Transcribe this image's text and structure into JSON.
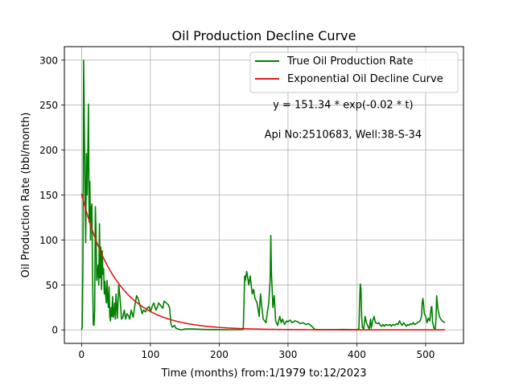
{
  "chart_data": {
    "type": "line",
    "title": "Oil Production Decline Curve",
    "xlabel": "Time (months) from:1/1979 to:12/2023",
    "ylabel": "Oil Production Rate (bbl/month)",
    "xlim": [
      -25,
      555
    ],
    "ylim": [
      -15,
      315
    ],
    "xticks": [
      0,
      100,
      200,
      300,
      400,
      500
    ],
    "yticks": [
      0,
      50,
      100,
      150,
      200,
      250,
      300
    ],
    "grid": true,
    "legend_position": "top-right",
    "annotations": [
      {
        "text": "y = 151.34 * exp(-0.02 * t)",
        "x": 380,
        "y": 250
      },
      {
        "text": "Api No:2510683, Well:38-S-34",
        "x": 380,
        "y": 217
      }
    ],
    "series": [
      {
        "name": "True Oil Production Rate",
        "color": "#008000",
        "points": [
          [
            0,
            0
          ],
          [
            1,
            3
          ],
          [
            2,
            80
          ],
          [
            3,
            300
          ],
          [
            4,
            230
          ],
          [
            5,
            150
          ],
          [
            6,
            97
          ],
          [
            7,
            196
          ],
          [
            8,
            150
          ],
          [
            9,
            190
          ],
          [
            10,
            251
          ],
          [
            11,
            120
          ],
          [
            12,
            165
          ],
          [
            13,
            100
          ],
          [
            14,
            135
          ],
          [
            15,
            140
          ],
          [
            16,
            60
          ],
          [
            17,
            6
          ],
          [
            18,
            5
          ],
          [
            19,
            20
          ],
          [
            20,
            137
          ],
          [
            21,
            110
          ],
          [
            22,
            55
          ],
          [
            23,
            62
          ],
          [
            24,
            72
          ],
          [
            25,
            50
          ],
          [
            26,
            118
          ],
          [
            27,
            58
          ],
          [
            28,
            92
          ],
          [
            29,
            45
          ],
          [
            30,
            88
          ],
          [
            31,
            62
          ],
          [
            32,
            68
          ],
          [
            33,
            40
          ],
          [
            34,
            54
          ],
          [
            35,
            38
          ],
          [
            36,
            30
          ],
          [
            37,
            55
          ],
          [
            38,
            33
          ],
          [
            39,
            25
          ],
          [
            40,
            48
          ],
          [
            41,
            15
          ],
          [
            42,
            10
          ],
          [
            43,
            25
          ],
          [
            44,
            15
          ],
          [
            45,
            37
          ],
          [
            46,
            14
          ],
          [
            47,
            18
          ],
          [
            48,
            30
          ],
          [
            49,
            12
          ],
          [
            50,
            40
          ],
          [
            52,
            13
          ],
          [
            54,
            50
          ],
          [
            56,
            35
          ],
          [
            58,
            12
          ],
          [
            60,
            14
          ],
          [
            62,
            22
          ],
          [
            64,
            12
          ],
          [
            66,
            18
          ],
          [
            68,
            16
          ],
          [
            70,
            12
          ],
          [
            72,
            22
          ],
          [
            75,
            14
          ],
          [
            78,
            30
          ],
          [
            80,
            38
          ],
          [
            82,
            35
          ],
          [
            85,
            27
          ],
          [
            88,
            18
          ],
          [
            90,
            22
          ],
          [
            93,
            20
          ],
          [
            95,
            24
          ],
          [
            98,
            26
          ],
          [
            100,
            20
          ],
          [
            103,
            27
          ],
          [
            105,
            30
          ],
          [
            108,
            22
          ],
          [
            110,
            25
          ],
          [
            112,
            30
          ],
          [
            115,
            27
          ],
          [
            118,
            24
          ],
          [
            120,
            32
          ],
          [
            123,
            30
          ],
          [
            126,
            28
          ],
          [
            128,
            24
          ],
          [
            130,
            6
          ],
          [
            132,
            3
          ],
          [
            135,
            5
          ],
          [
            137,
            2
          ],
          [
            140,
            1
          ],
          [
            145,
            0
          ],
          [
            150,
            1
          ],
          [
            160,
            1
          ],
          [
            180,
            0.5
          ],
          [
            200,
            0.3
          ],
          [
            220,
            0.2
          ],
          [
            235,
            0.5
          ],
          [
            236,
            30
          ],
          [
            237,
            60
          ],
          [
            238,
            55
          ],
          [
            240,
            65
          ],
          [
            243,
            50
          ],
          [
            245,
            60
          ],
          [
            248,
            40
          ],
          [
            250,
            45
          ],
          [
            252,
            35
          ],
          [
            255,
            30
          ],
          [
            258,
            15
          ],
          [
            260,
            40
          ],
          [
            262,
            25
          ],
          [
            264,
            12
          ],
          [
            266,
            10
          ],
          [
            268,
            8
          ],
          [
            270,
            20
          ],
          [
            272,
            30
          ],
          [
            274,
            55
          ],
          [
            275,
            105
          ],
          [
            276,
            60
          ],
          [
            277,
            45
          ],
          [
            278,
            25
          ],
          [
            280,
            38
          ],
          [
            282,
            10
          ],
          [
            285,
            5
          ],
          [
            288,
            15
          ],
          [
            290,
            8
          ],
          [
            292,
            12
          ],
          [
            295,
            6
          ],
          [
            298,
            10
          ],
          [
            300,
            9
          ],
          [
            303,
            11
          ],
          [
            306,
            8
          ],
          [
            310,
            10
          ],
          [
            314,
            9
          ],
          [
            318,
            7
          ],
          [
            322,
            8
          ],
          [
            326,
            6
          ],
          [
            330,
            7
          ],
          [
            333,
            5
          ],
          [
            336,
            3
          ],
          [
            338,
            1
          ],
          [
            340,
            0.5
          ],
          [
            360,
            0.3
          ],
          [
            380,
            0.5
          ],
          [
            400,
            0.3
          ],
          [
            403,
            1
          ],
          [
            404,
            30
          ],
          [
            405,
            51
          ],
          [
            406,
            45
          ],
          [
            407,
            15
          ],
          [
            408,
            3
          ],
          [
            410,
            1
          ],
          [
            412,
            15
          ],
          [
            414,
            8
          ],
          [
            416,
            4
          ],
          [
            418,
            1
          ],
          [
            420,
            12
          ],
          [
            421,
            2
          ],
          [
            423,
            10
          ],
          [
            425,
            15
          ],
          [
            427,
            8
          ],
          [
            430,
            7
          ],
          [
            432,
            8
          ],
          [
            434,
            5
          ],
          [
            436,
            4
          ],
          [
            438,
            6
          ],
          [
            440,
            4
          ],
          [
            442,
            6
          ],
          [
            445,
            5
          ],
          [
            448,
            6
          ],
          [
            450,
            4
          ],
          [
            452,
            6
          ],
          [
            455,
            5
          ],
          [
            458,
            7
          ],
          [
            460,
            6
          ],
          [
            462,
            10
          ],
          [
            464,
            7
          ],
          [
            466,
            5
          ],
          [
            468,
            8
          ],
          [
            470,
            6
          ],
          [
            472,
            4
          ],
          [
            474,
            6
          ],
          [
            476,
            5
          ],
          [
            478,
            7
          ],
          [
            480,
            6
          ],
          [
            482,
            8
          ],
          [
            484,
            6
          ],
          [
            486,
            7
          ],
          [
            488,
            8
          ],
          [
            490,
            9
          ],
          [
            492,
            10
          ],
          [
            494,
            15
          ],
          [
            495,
            30
          ],
          [
            496,
            35
          ],
          [
            497,
            28
          ],
          [
            498,
            18
          ],
          [
            500,
            15
          ],
          [
            502,
            8
          ],
          [
            504,
            13
          ],
          [
            506,
            10
          ],
          [
            508,
            25
          ],
          [
            509,
            26
          ],
          [
            510,
            9
          ],
          [
            512,
            2
          ],
          [
            514,
            1
          ],
          [
            515,
            12
          ],
          [
            516,
            38
          ],
          [
            517,
            30
          ],
          [
            518,
            22
          ],
          [
            520,
            15
          ],
          [
            522,
            12
          ],
          [
            524,
            10
          ],
          [
            526,
            9
          ],
          [
            528,
            8
          ]
        ]
      },
      {
        "name": "Exponential Oil Decline Curve",
        "color": "#e31a1c",
        "model": {
          "a": 151.34,
          "b": -0.02,
          "t_start": 0,
          "t_end": 528
        }
      }
    ]
  }
}
